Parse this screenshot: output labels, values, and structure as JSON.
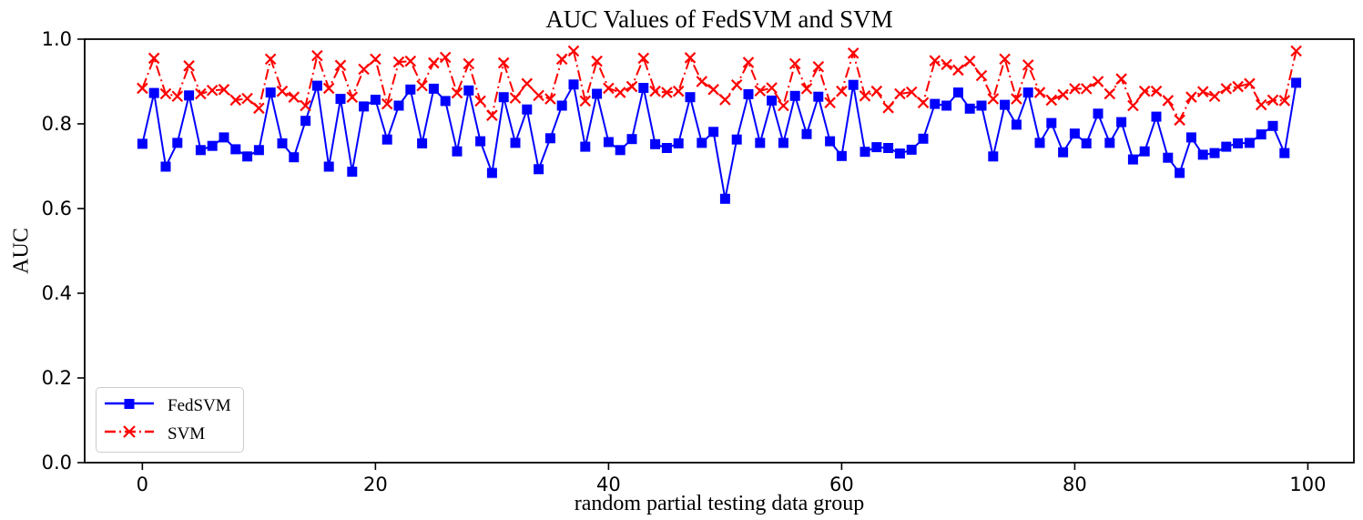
{
  "figure": {
    "title": "AUC Values of FedSVM and SVM",
    "xlabel": "random partial testing data group",
    "ylabel": "AUC"
  },
  "chart_data": {
    "type": "line",
    "title": "AUC Values of FedSVM and SVM",
    "xlabel": "random partial testing data group",
    "ylabel": "AUC",
    "xlim": [
      -4.95,
      103.95
    ],
    "ylim": [
      0.0,
      1.0
    ],
    "x_ticks": [
      0,
      20,
      40,
      60,
      80,
      100
    ],
    "x_tick_labels": [
      "0",
      "20",
      "40",
      "60",
      "80",
      "100"
    ],
    "y_ticks": [
      0.0,
      0.2,
      0.4,
      0.6,
      0.8,
      1.0
    ],
    "y_tick_labels": [
      "0.0",
      "0.2",
      "0.4",
      "0.6",
      "0.8",
      "1.0"
    ],
    "grid": false,
    "legend_position": "lower-left",
    "x": [
      0,
      1,
      2,
      3,
      4,
      5,
      6,
      7,
      8,
      9,
      10,
      11,
      12,
      13,
      14,
      15,
      16,
      17,
      18,
      19,
      20,
      21,
      22,
      23,
      24,
      25,
      26,
      27,
      28,
      29,
      30,
      31,
      32,
      33,
      34,
      35,
      36,
      37,
      38,
      39,
      40,
      41,
      42,
      43,
      44,
      45,
      46,
      47,
      48,
      49,
      50,
      51,
      52,
      53,
      54,
      55,
      56,
      57,
      58,
      59,
      60,
      61,
      62,
      63,
      64,
      65,
      66,
      67,
      68,
      69,
      70,
      71,
      72,
      73,
      74,
      75,
      76,
      77,
      78,
      79,
      80,
      81,
      82,
      83,
      84,
      85,
      86,
      87,
      88,
      89,
      90,
      91,
      92,
      93,
      94,
      95,
      96,
      97,
      98,
      99
    ],
    "series": [
      {
        "name": "FedSVM",
        "color": "#0000FF",
        "line_style": "solid",
        "marker": "square",
        "values": [
          0.753,
          0.873,
          0.699,
          0.755,
          0.867,
          0.738,
          0.748,
          0.768,
          0.74,
          0.723,
          0.738,
          0.874,
          0.754,
          0.721,
          0.807,
          0.89,
          0.699,
          0.859,
          0.687,
          0.841,
          0.857,
          0.763,
          0.843,
          0.881,
          0.754,
          0.883,
          0.854,
          0.735,
          0.879,
          0.759,
          0.684,
          0.863,
          0.755,
          0.834,
          0.693,
          0.766,
          0.843,
          0.893,
          0.746,
          0.871,
          0.757,
          0.738,
          0.764,
          0.885,
          0.752,
          0.743,
          0.754,
          0.863,
          0.755,
          0.781,
          0.623,
          0.763,
          0.87,
          0.755,
          0.855,
          0.755,
          0.866,
          0.776,
          0.864,
          0.759,
          0.724,
          0.892,
          0.734,
          0.745,
          0.743,
          0.73,
          0.739,
          0.765,
          0.847,
          0.843,
          0.874,
          0.836,
          0.843,
          0.723,
          0.845,
          0.798,
          0.874,
          0.755,
          0.802,
          0.733,
          0.777,
          0.754,
          0.824,
          0.755,
          0.804,
          0.716,
          0.735,
          0.817,
          0.72,
          0.684,
          0.768,
          0.727,
          0.731,
          0.746,
          0.754,
          0.755,
          0.775,
          0.795,
          0.731,
          0.897
        ]
      },
      {
        "name": "SVM",
        "color": "#FF0000",
        "line_style": "dashdot",
        "marker": "x",
        "values": [
          0.884,
          0.955,
          0.871,
          0.865,
          0.937,
          0.871,
          0.879,
          0.881,
          0.856,
          0.86,
          0.837,
          0.953,
          0.877,
          0.863,
          0.843,
          0.961,
          0.884,
          0.938,
          0.863,
          0.929,
          0.953,
          0.847,
          0.946,
          0.948,
          0.89,
          0.944,
          0.957,
          0.873,
          0.942,
          0.854,
          0.82,
          0.944,
          0.861,
          0.895,
          0.867,
          0.859,
          0.953,
          0.972,
          0.854,
          0.948,
          0.884,
          0.874,
          0.888,
          0.955,
          0.877,
          0.874,
          0.877,
          0.956,
          0.9,
          0.881,
          0.857,
          0.892,
          0.945,
          0.878,
          0.885,
          0.843,
          0.942,
          0.883,
          0.935,
          0.85,
          0.877,
          0.967,
          0.866,
          0.877,
          0.838,
          0.871,
          0.875,
          0.85,
          0.949,
          0.94,
          0.927,
          0.948,
          0.914,
          0.859,
          0.953,
          0.859,
          0.939,
          0.874,
          0.856,
          0.869,
          0.883,
          0.883,
          0.9,
          0.871,
          0.906,
          0.843,
          0.877,
          0.877,
          0.855,
          0.809,
          0.863,
          0.876,
          0.865,
          0.883,
          0.888,
          0.895,
          0.845,
          0.856,
          0.855,
          0.972
        ]
      }
    ]
  }
}
